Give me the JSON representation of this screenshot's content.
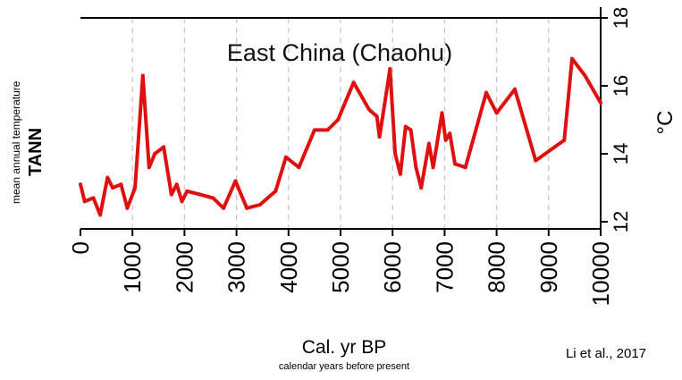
{
  "chart_data": {
    "type": "line",
    "title": "East China (Chaohu)",
    "xlabel": "Cal. yr BP",
    "xlabel_sub": "calendar years before present",
    "ylabel": "TANN",
    "ylabel_sub": "mean annual temperature",
    "y_unit": "°C",
    "citation": "Li et al., 2017",
    "xlim": [
      0,
      10000
    ],
    "ylim": [
      12,
      18
    ],
    "x_ticks": [
      "0",
      "1000",
      "2000",
      "3000",
      "4000",
      "5000",
      "6000",
      "7000",
      "8000",
      "9000",
      "10000"
    ],
    "y_ticks": [
      "12",
      "14",
      "16",
      "18"
    ],
    "grid": "vertical dashed",
    "series_color": "#e01010",
    "series": [
      {
        "x": [
          0,
          80,
          250,
          380,
          520,
          620,
          780,
          900,
          1050,
          1200,
          1320,
          1430,
          1600,
          1750,
          1850,
          1950,
          2050,
          2300,
          2550,
          2750,
          2980,
          3200,
          3450,
          3750,
          3950,
          4200,
          4500,
          4750,
          4950,
          5250,
          5550,
          5700,
          5750,
          5850,
          5950,
          6050,
          6150,
          6250,
          6350,
          6450,
          6550,
          6700,
          6780,
          6950,
          7020,
          7100,
          7200,
          7400,
          7800,
          8000,
          8350,
          8750,
          9300,
          9450,
          9700,
          10000
        ],
        "y": [
          13.1,
          12.6,
          12.7,
          12.2,
          13.3,
          13.0,
          13.1,
          12.4,
          13.0,
          16.3,
          13.6,
          14.0,
          14.2,
          12.8,
          13.1,
          12.6,
          12.9,
          12.8,
          12.7,
          12.4,
          13.2,
          12.4,
          12.5,
          12.9,
          13.9,
          13.6,
          14.7,
          14.7,
          15.0,
          16.1,
          15.3,
          15.1,
          14.5,
          15.5,
          16.5,
          14.0,
          13.4,
          14.8,
          14.7,
          13.6,
          13.0,
          14.3,
          13.6,
          15.2,
          14.4,
          14.6,
          13.7,
          13.6,
          15.8,
          15.2,
          15.9,
          13.8,
          14.4,
          16.8,
          16.3,
          15.5
        ]
      }
    ]
  }
}
